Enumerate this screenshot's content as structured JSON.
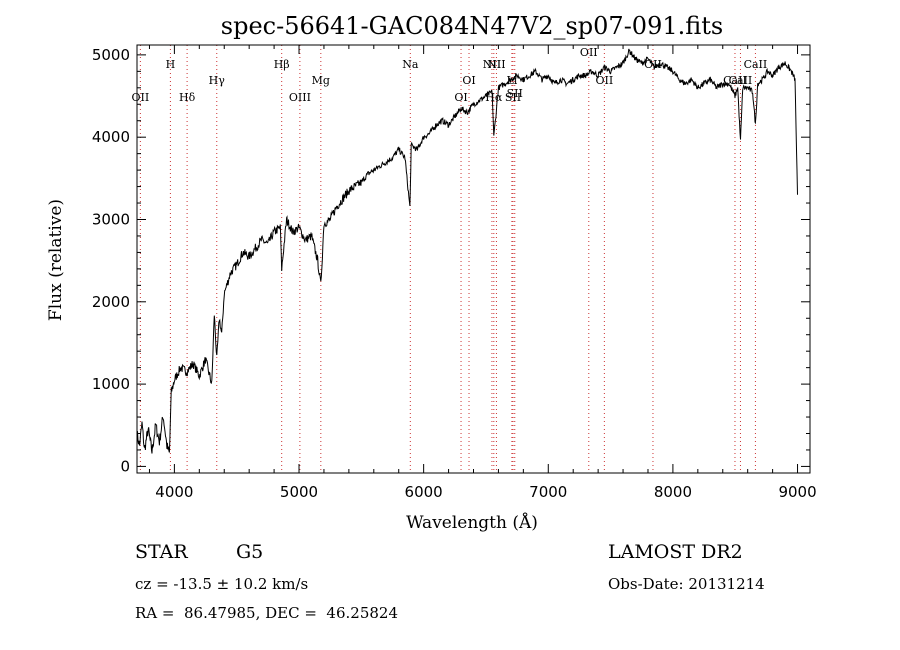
{
  "chart_data": {
    "type": "line",
    "title": "spec-56641-GAC084N47V2_sp07-091.fits",
    "xlabel": "Wavelength (Å)",
    "ylabel": "Flux (relative)",
    "xlim": [
      3700,
      9100
    ],
    "ylim": [
      -80,
      5120
    ],
    "xticks": [
      4000,
      5000,
      6000,
      7000,
      8000,
      9000
    ],
    "yticks": [
      0,
      1000,
      2000,
      3000,
      4000,
      5000
    ],
    "grid": false,
    "legend": "none",
    "series": [
      {
        "x": [
          3700,
          3720,
          3740,
          3760,
          3790,
          3820,
          3850,
          3880,
          3910,
          3940,
          3960,
          3975,
          4000,
          4050,
          4100,
          4150,
          4200,
          4250,
          4300,
          4320,
          4340,
          4360,
          4380,
          4400,
          4450,
          4500,
          4550,
          4600,
          4650,
          4700,
          4750,
          4800,
          4850,
          4861,
          4900,
          4950,
          5000,
          5050,
          5100,
          5150,
          5175,
          5200,
          5250,
          5300,
          5350,
          5400,
          5450,
          5500,
          5550,
          5600,
          5650,
          5700,
          5750,
          5800,
          5850,
          5890,
          5900,
          5950,
          6000,
          6050,
          6100,
          6150,
          6200,
          6250,
          6300,
          6350,
          6400,
          6450,
          6500,
          6550,
          6563,
          6600,
          6650,
          6700,
          6750,
          6800,
          6850,
          6900,
          6950,
          7000,
          7050,
          7100,
          7150,
          7200,
          7250,
          7300,
          7350,
          7400,
          7450,
          7500,
          7550,
          7600,
          7650,
          7700,
          7750,
          7800,
          7850,
          7900,
          7950,
          8000,
          8050,
          8100,
          8150,
          8200,
          8250,
          8300,
          8350,
          8400,
          8450,
          8498,
          8520,
          8542,
          8560,
          8600,
          8640,
          8662,
          8680,
          8720,
          8760,
          8800,
          8850,
          8900,
          8950,
          8980,
          9000
        ],
        "y": [
          400,
          250,
          520,
          200,
          450,
          180,
          500,
          300,
          620,
          250,
          150,
          900,
          1050,
          1200,
          1150,
          1250,
          1100,
          1300,
          1000,
          1850,
          1300,
          1800,
          1600,
          2100,
          2350,
          2450,
          2600,
          2550,
          2650,
          2750,
          2700,
          2850,
          2900,
          2400,
          3000,
          2850,
          2900,
          2750,
          2800,
          2500,
          2200,
          2950,
          3000,
          3150,
          3250,
          3350,
          3400,
          3450,
          3550,
          3600,
          3650,
          3700,
          3750,
          3850,
          3750,
          3150,
          3900,
          3850,
          4000,
          4050,
          4150,
          4200,
          4150,
          4250,
          4350,
          4300,
          4400,
          4450,
          4500,
          4550,
          4000,
          4600,
          4650,
          4700,
          4750,
          4700,
          4750,
          4800,
          4700,
          4750,
          4650,
          4700,
          4650,
          4700,
          4750,
          4750,
          4800,
          4750,
          4850,
          4800,
          4850,
          4900,
          5050,
          4950,
          4900,
          4950,
          4850,
          4900,
          4850,
          4800,
          4700,
          4650,
          4700,
          4600,
          4650,
          4700,
          4600,
          4650,
          4650,
          4500,
          4600,
          3950,
          4600,
          4600,
          4550,
          4150,
          4650,
          4700,
          4800,
          4750,
          4850,
          4900,
          4800,
          4700,
          3300
        ]
      }
    ],
    "spectral_lines": [
      {
        "label": "OII",
        "x": 3727,
        "row": 4
      },
      {
        "label": "H",
        "x": 3968,
        "row": 1
      },
      {
        "label": "Hδ",
        "x": 4102,
        "row": 4
      },
      {
        "label": "Hγ",
        "x": 4340,
        "row": 2
      },
      {
        "label": "Hβ",
        "x": 4861,
        "row": 1
      },
      {
        "label": "OIII",
        "x": 5007,
        "row": 4
      },
      {
        "label": "Mg",
        "x": 5175,
        "row": 2
      },
      {
        "label": "Na",
        "x": 5893,
        "row": 1
      },
      {
        "label": "OI",
        "x": 6300,
        "row": 4
      },
      {
        "label": "OI",
        "x": 6364,
        "row": 2
      },
      {
        "label": "NII",
        "x": 6548,
        "row": 1
      },
      {
        "label": "Hα",
        "x": 6563,
        "row": 4
      },
      {
        "label": "NII",
        "x": 6584,
        "row": 1
      },
      {
        "label": "SII",
        "x": 6717,
        "row": 4
      },
      {
        "label": "SII",
        "x": 6731,
        "row": 3
      },
      {
        "label": "Li",
        "x": 6708,
        "row": 2
      },
      {
        "label": "OII",
        "x": 7325,
        "row": 0
      },
      {
        "label": "OII",
        "x": 7450,
        "row": 2
      },
      {
        "label": "OII",
        "x": 7840,
        "row": 1
      },
      {
        "label": "CaII",
        "x": 8498,
        "row": 2
      },
      {
        "label": "CaII",
        "x": 8542,
        "row": 2
      },
      {
        "label": "CaII",
        "x": 8662,
        "row": 1
      }
    ]
  },
  "info": {
    "object_class": "STAR",
    "subclass": "G5",
    "survey": "LAMOST DR2",
    "redshift": "cz = -13.5 ± 10.2 km/s",
    "obs_date": "Obs-Date: 20131214",
    "coords": "RA =  86.47985, DEC =  46.25824"
  },
  "colors": {
    "line": "#000000",
    "marker": "#cc3333",
    "background": "#ffffff"
  }
}
